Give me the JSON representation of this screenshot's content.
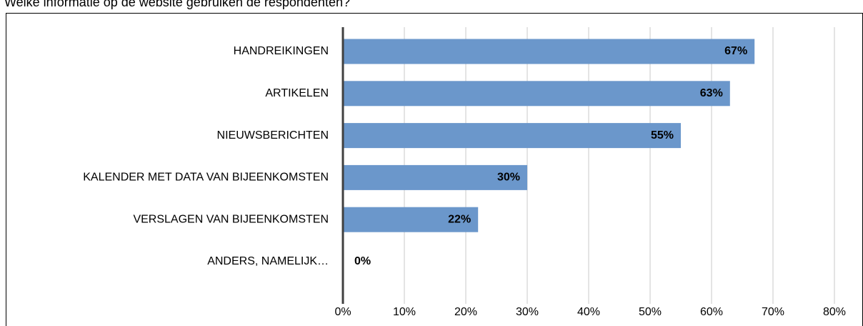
{
  "chart_data": {
    "type": "hbar",
    "title": "Welke informatie op de website gebruiken de respondenten?",
    "categories": [
      "HANDREIKINGEN",
      "ARTIKELEN",
      "NIEUWSBERICHTEN",
      "KALENDER MET DATA VAN BIJEENKOMSTEN",
      "VERSLAGEN VAN BIJEENKOMSTEN",
      "ANDERS, NAMELIJK…"
    ],
    "values": [
      67,
      63,
      55,
      30,
      22,
      0
    ],
    "value_labels": [
      "67%",
      "63%",
      "55%",
      "30%",
      "22%",
      "0%"
    ],
    "color": "#6b97cb",
    "xlim": [
      0,
      80
    ],
    "xticks": [
      {
        "value": 0,
        "label": "0%"
      },
      {
        "value": 10,
        "label": "10%"
      },
      {
        "value": 20,
        "label": "20%"
      },
      {
        "value": 30,
        "label": "30%"
      },
      {
        "value": 40,
        "label": "40%"
      },
      {
        "value": 50,
        "label": "50%"
      },
      {
        "value": 60,
        "label": "60%"
      },
      {
        "value": 70,
        "label": "70%"
      },
      {
        "value": 80,
        "label": "80%"
      }
    ],
    "grid": true
  }
}
